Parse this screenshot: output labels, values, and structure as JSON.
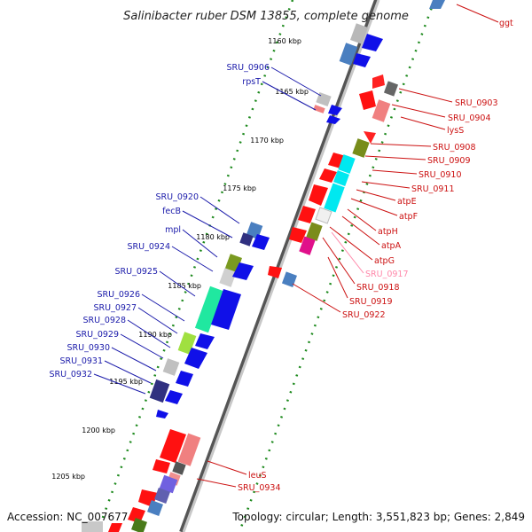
{
  "title": "Salinibacter ruber DSM 13855, complete genome",
  "footer": {
    "accession": "Accession: NC_007677",
    "topology": "Topology: circular; Length: 3,551,823 bp; Genes: 2,849"
  },
  "ticks": [
    "1160 kbp",
    "1165 kbp",
    "1170 kbp",
    "1175 kbp",
    "1180 kbp",
    "1185 kbp",
    "1190 kbp",
    "1195 kbp",
    "1200 kbp",
    "1205 kbp"
  ],
  "left_labels": [
    "SRU_0906",
    "rpsT",
    "SRU_0920",
    "fecB",
    "mpl",
    "SRU_0924",
    "SRU_0925",
    "SRU_0926",
    "SRU_0927",
    "SRU_0928",
    "SRU_0929",
    "SRU_0930",
    "SRU_0931",
    "SRU_0932"
  ],
  "right_labels": [
    "ggt",
    "SRU_0903",
    "SRU_0904",
    "lysS",
    "SRU_0908",
    "SRU_0909",
    "SRU_0910",
    "SRU_0911",
    "atpE",
    "atpF",
    "atpH",
    "atpA",
    "atpG",
    "SRU_0917",
    "SRU_0918",
    "SRU_0919",
    "SRU_0922",
    "leuS",
    "SRU_0934"
  ],
  "colors": {
    "backbone": "#888888",
    "forward_label": "#1a1aaa",
    "reverse_label": "#cc1111",
    "pink_label": "#ff88aa",
    "dots": "#1e8a1e"
  }
}
